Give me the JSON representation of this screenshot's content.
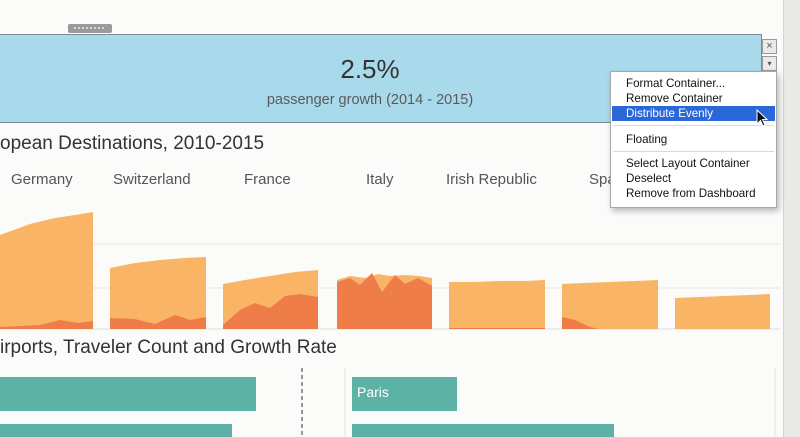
{
  "kpi": {
    "value": "2.5%",
    "caption": "passenger growth (2014 - 2015)"
  },
  "controls": {
    "close": "×",
    "more": "▾"
  },
  "menu": {
    "items": [
      {
        "label": "Format Container..."
      },
      {
        "label": "Remove Container"
      },
      {
        "label": "Distribute Evenly",
        "selected": true
      },
      {
        "label": "Floating"
      },
      {
        "label": "Select Layout Container"
      },
      {
        "label": "Deselect"
      },
      {
        "label": "Remove from Dashboard"
      }
    ]
  },
  "section1": {
    "title": "opean Destinations, 2010-2015"
  },
  "countries": [
    "Germany",
    "Switzerland",
    "France",
    "Italy",
    "Irish Republic",
    "Spa"
  ],
  "section2": {
    "title": "irports, Traveler Count and Growth Rate"
  },
  "airports": {
    "labels": [
      "Paris"
    ]
  },
  "colors": {
    "banner": "#a9daec",
    "area_light": "#f9b466",
    "area_dark": "#ee7d4a",
    "bars": "#5cb3a5",
    "menu_selected": "#2a68d9"
  }
}
